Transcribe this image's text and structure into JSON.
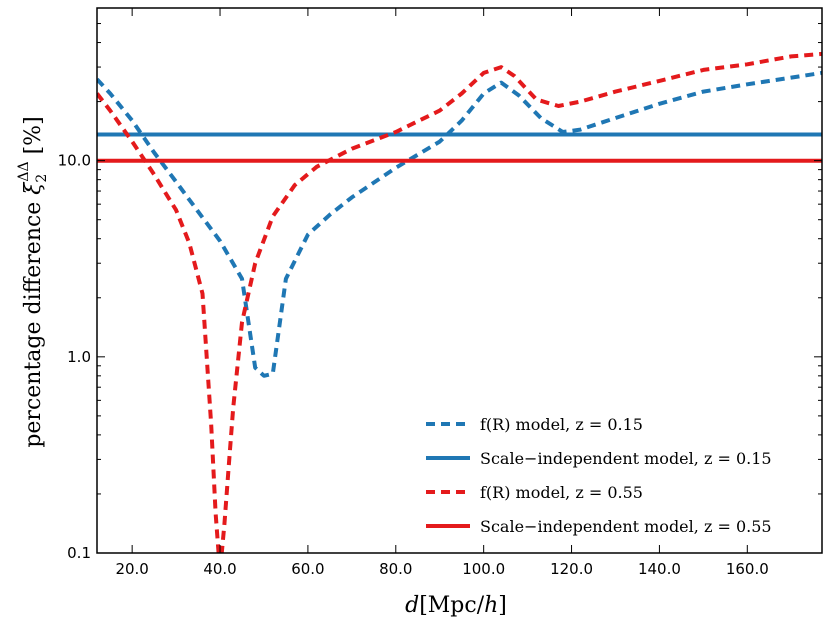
{
  "chart_data": {
    "type": "line",
    "title": "",
    "xlabel": "d[Mpc/h]",
    "ylabel": "percentage difference ξ₂^ΔΔ [%]",
    "xscale": "linear",
    "yscale": "log",
    "xlim": [
      12,
      177
    ],
    "ylim": [
      0.1,
      60
    ],
    "xticks": [
      20,
      40,
      60,
      80,
      100,
      120,
      140,
      160
    ],
    "xtick_labels": [
      "20.0",
      "40.0",
      "60.0",
      "80.0",
      "100.0",
      "120.0",
      "140.0",
      "160.0"
    ],
    "yticks": [
      0.1,
      1,
      10
    ],
    "ytick_labels": [
      "0.1",
      "1.0",
      "10.0"
    ],
    "legend_position": "lower-right",
    "series": [
      {
        "name": "f(R) model, z = 0.15",
        "color": "#1f77b4",
        "style": "dashed",
        "x": [
          12,
          15,
          20,
          25,
          30,
          35,
          40,
          45,
          48,
          50,
          52,
          55,
          60,
          65,
          70,
          80,
          90,
          95,
          100,
          104,
          108,
          113,
          118,
          122,
          130,
          140,
          150,
          160,
          170,
          177
        ],
        "y": [
          26,
          22,
          16,
          11,
          7.8,
          5.5,
          3.9,
          2.5,
          0.88,
          0.8,
          0.82,
          2.5,
          4.2,
          5.3,
          6.5,
          9.2,
          12.5,
          16,
          22,
          25,
          21.5,
          16.5,
          14,
          14.4,
          16.5,
          19.5,
          22.5,
          24.5,
          26.5,
          28
        ]
      },
      {
        "name": "Scale−independent model, z = 0.15",
        "color": "#1f77b4",
        "style": "solid",
        "x": [
          12,
          177
        ],
        "y": [
          13.6,
          13.6
        ]
      },
      {
        "name": "f(R) model, z = 0.55",
        "color": "#e41a1c",
        "style": "dashed",
        "x": [
          12,
          15,
          20,
          25,
          30,
          33,
          36,
          38,
          39,
          40,
          41,
          42,
          43,
          45,
          48,
          52,
          57,
          62,
          70,
          80,
          90,
          95,
          100,
          104,
          107,
          112,
          117,
          122,
          130,
          140,
          150,
          160,
          170,
          177
        ],
        "y": [
          22,
          18,
          12.5,
          8.5,
          5.6,
          3.8,
          2.1,
          0.45,
          0.16,
          0.08,
          0.14,
          0.28,
          0.55,
          1.5,
          3.0,
          5.2,
          7.5,
          9.3,
          11.5,
          14,
          18,
          22,
          28,
          30,
          27,
          20.5,
          19,
          20,
          22.5,
          25.5,
          29,
          31,
          34,
          35
        ]
      },
      {
        "name": "Scale−independent model, z = 0.55",
        "color": "#e41a1c",
        "style": "solid",
        "x": [
          12,
          177
        ],
        "y": [
          10,
          10
        ]
      }
    ],
    "legend": [
      {
        "label": "f(R) model, z = 0.15",
        "color": "#1f77b4",
        "style": "dashed"
      },
      {
        "label": "Scale−independent model, z = 0.15",
        "color": "#1f77b4",
        "style": "solid"
      },
      {
        "label": "f(R) model, z = 0.55",
        "color": "#e41a1c",
        "style": "dashed"
      },
      {
        "label": "Scale−independent model, z = 0.55",
        "color": "#e41a1c",
        "style": "solid"
      }
    ]
  }
}
